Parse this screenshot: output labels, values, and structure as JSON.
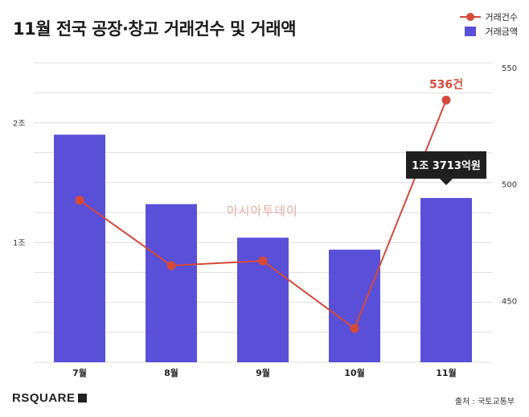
{
  "chart_data": {
    "type": "bar+line",
    "title": "11월 전국 공장·창고 거래건수 및 거래액",
    "categories": [
      "7월",
      "8월",
      "9월",
      "10월",
      "11월"
    ],
    "series": [
      {
        "name": "거래금액",
        "type": "bar",
        "axis": "left",
        "color": "#5a50d8",
        "values": [
          1.9,
          1.32,
          1.04,
          0.94,
          1.3713
        ]
      },
      {
        "name": "거래건수",
        "type": "line",
        "axis": "right",
        "color": "#d44a3a",
        "values": [
          493,
          465,
          467,
          438,
          536
        ]
      }
    ],
    "left_axis": {
      "ticks": [
        {
          "value": 1,
          "label": "1조"
        },
        {
          "value": 2,
          "label": "2조"
        }
      ],
      "ylim": [
        0,
        2.5
      ]
    },
    "right_axis": {
      "ticks": [
        {
          "value": 450,
          "label": "450"
        },
        {
          "value": 500,
          "label": "500"
        },
        {
          "value": 550,
          "label": "550"
        }
      ],
      "ylim": [
        423.5,
        552
      ]
    },
    "annotations": {
      "line_last": "536건",
      "bar_last": "1조 3713억원"
    },
    "legend": [
      "거래건수",
      "거래금액"
    ]
  },
  "footer": {
    "logo": "RSQUARE",
    "source": "출처 : 국토교통부"
  },
  "watermark": "아시아투데이"
}
